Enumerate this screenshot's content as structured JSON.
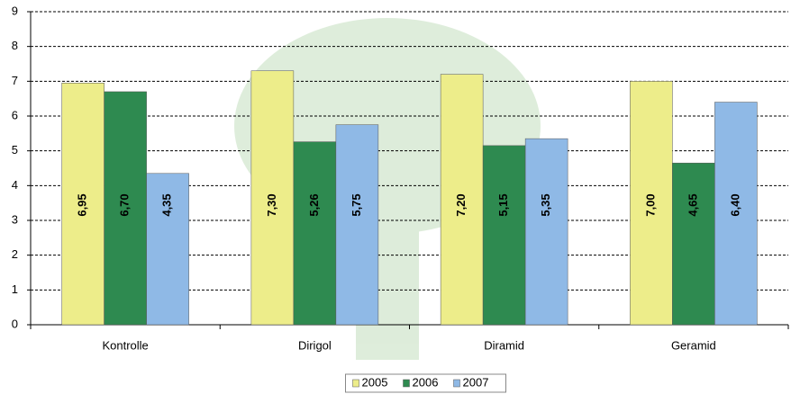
{
  "chart_data": {
    "type": "bar",
    "categories": [
      "Kontrolle",
      "Dirigol",
      "Diramid",
      "Geramid"
    ],
    "series": [
      {
        "name": "2005",
        "color": "#eded8a",
        "values": [
          6.95,
          7.3,
          7.2,
          7.0
        ],
        "value_labels": [
          "6,95",
          "7,30",
          "7,20",
          "7,00"
        ]
      },
      {
        "name": "2006",
        "color": "#2e8a50",
        "values": [
          6.7,
          5.26,
          5.15,
          4.65
        ],
        "value_labels": [
          "6,70",
          "5,26",
          "5,15",
          "4,65"
        ]
      },
      {
        "name": "2007",
        "color": "#8fb9e6",
        "values": [
          4.35,
          5.75,
          5.35,
          6.4
        ],
        "value_labels": [
          "4,35",
          "5,75",
          "5,35",
          "6,40"
        ]
      }
    ],
    "ylim": [
      0,
      9
    ],
    "yticks": [
      0,
      1,
      2,
      3,
      4,
      5,
      6,
      7,
      8,
      9
    ],
    "grid": true,
    "legend": "bottom"
  }
}
